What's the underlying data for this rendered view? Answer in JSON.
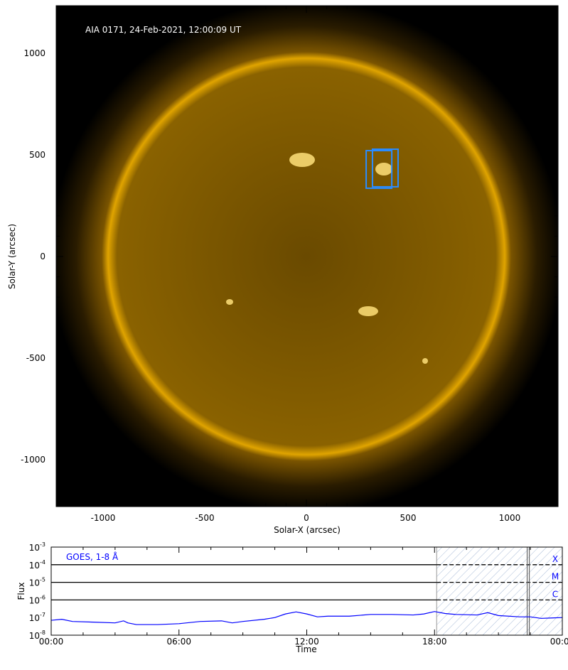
{
  "image_panel": {
    "annotation": "AIA 0171, 24-Feb-2021, 12:00:09 UT",
    "xlabel": "Solar-X (arcsec)",
    "ylabel": "Solar-Y (arcsec)",
    "xlim": [
      -1240,
      1240
    ],
    "ylim": [
      -1240,
      1240
    ],
    "xticks": [
      "-1000",
      "-500",
      "0",
      "500",
      "1000"
    ],
    "yticks": [
      "-1000",
      "-500",
      "0",
      "500",
      "1000"
    ],
    "colors": {
      "sun": "#d9a000",
      "box": "#2a8cff",
      "background": "#000000"
    },
    "boxes": [
      {
        "x": [
          294,
          420
        ],
        "y": [
          336,
          521
        ]
      },
      {
        "x": [
          325,
          451
        ],
        "y": [
          343,
          528
        ]
      }
    ]
  },
  "chart_data": {
    "type": "line",
    "title": "",
    "label": "GOES, 1-8 Å",
    "xlabel": "Time",
    "ylabel": "Flux",
    "xlim_hours": [
      0,
      24
    ],
    "ylim": [
      1e-08,
      0.001
    ],
    "yscale": "log",
    "xticks": [
      "00:00",
      "06:00",
      "12:00",
      "18:00",
      "00:00"
    ],
    "yticks": [
      "10-8",
      "10-7",
      "10-6",
      "10-5",
      "10-4",
      "10-3"
    ],
    "flare_class_lines": [
      {
        "level": 1e-06,
        "label": "C"
      },
      {
        "level": 1e-05,
        "label": "M"
      },
      {
        "level": 0.0001,
        "label": "X"
      }
    ],
    "shaded_range_hours": [
      18.1,
      24
    ],
    "marker_hour": 22.4,
    "series": [
      {
        "color": "#0000ff",
        "x": [
          0,
          0.5,
          1,
          2,
          3,
          3.4,
          3.6,
          4,
          5,
          6,
          7,
          8,
          8.5,
          9,
          10,
          10.5,
          11,
          11.5,
          12,
          12.5,
          13,
          14,
          15,
          16,
          17,
          17.5,
          18,
          18.5,
          19,
          20,
          20.5,
          21,
          22,
          22.5,
          23,
          23.5,
          24
        ],
        "y": [
          7e-08,
          8e-08,
          6e-08,
          5.5e-08,
          5e-08,
          6.5e-08,
          5e-08,
          4e-08,
          4e-08,
          4.5e-08,
          6e-08,
          6.5e-08,
          5e-08,
          6e-08,
          8e-08,
          1e-07,
          1.6e-07,
          2.1e-07,
          1.6e-07,
          1.1e-07,
          1.2e-07,
          1.2e-07,
          1.5e-07,
          1.5e-07,
          1.4e-07,
          1.6e-07,
          2.2e-07,
          1.7e-07,
          1.5e-07,
          1.4e-07,
          1.9e-07,
          1.3e-07,
          1.1e-07,
          1.1e-07,
          9e-08,
          9.5e-08,
          1e-07
        ]
      }
    ]
  }
}
